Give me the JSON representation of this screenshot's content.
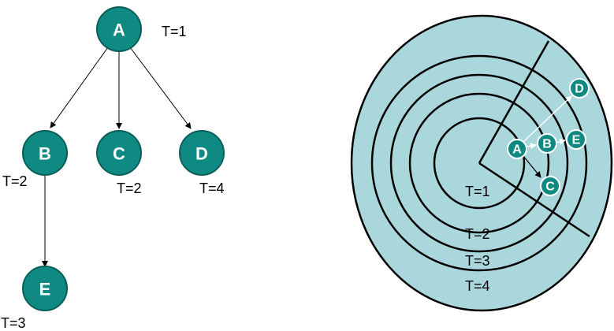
{
  "colors": {
    "node_fill": "#0f8a82",
    "node_stroke": "#0a5e59",
    "disc_fill": "#a9d7db",
    "text": "#000000"
  },
  "tree": {
    "nodes": {
      "A": {
        "label": "A",
        "time": "T=1"
      },
      "B": {
        "label": "B",
        "time": "T=2"
      },
      "C": {
        "label": "C",
        "time": "T=2"
      },
      "D": {
        "label": "D",
        "time": "T=4"
      },
      "E": {
        "label": "E",
        "time": "T=3"
      }
    },
    "edges": [
      [
        "A",
        "B"
      ],
      [
        "A",
        "C"
      ],
      [
        "A",
        "D"
      ],
      [
        "B",
        "E"
      ]
    ]
  },
  "rings": {
    "labels": [
      "T=1",
      "T=2",
      "T=3",
      "T=4"
    ],
    "nodes": {
      "A": "A",
      "B": "B",
      "C": "C",
      "D": "D",
      "E": "E"
    },
    "edges": [
      [
        "A",
        "B"
      ],
      [
        "A",
        "C"
      ],
      [
        "A",
        "D"
      ],
      [
        "B",
        "E"
      ]
    ]
  }
}
